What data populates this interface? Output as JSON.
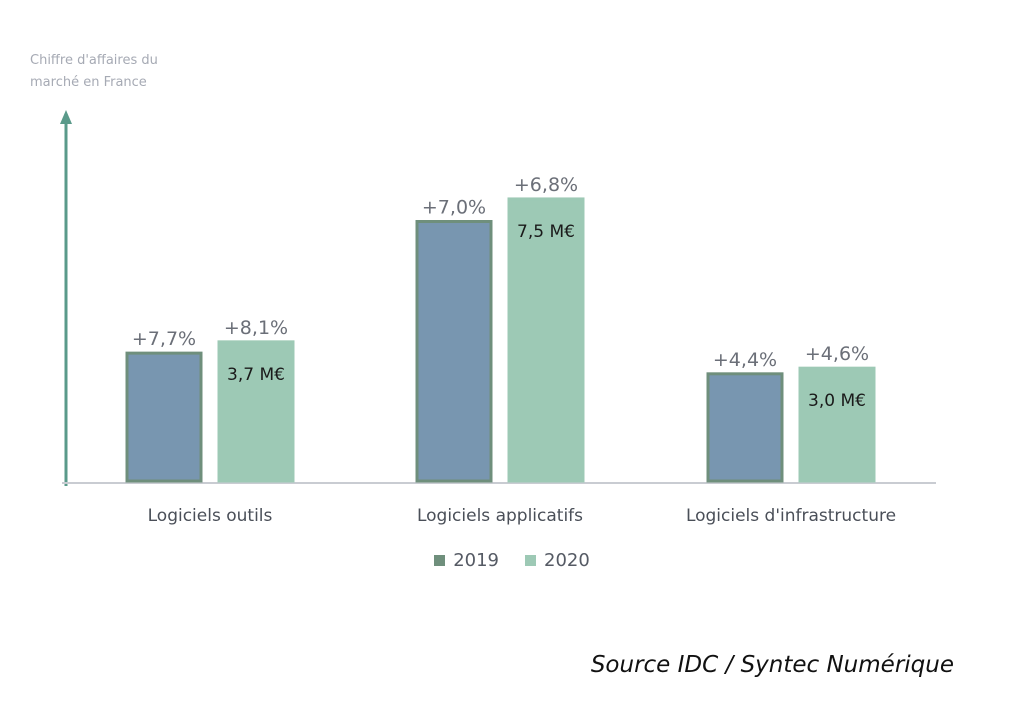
{
  "chart_data": {
    "type": "bar",
    "ylabel": "Chiffre d'affaires du marché en France",
    "categories": [
      "Logiciels outils",
      "Logiciels applicatifs",
      "Logiciels d'infrastructure"
    ],
    "ylim": [
      0,
      9.2
    ],
    "series": [
      {
        "name": "2019",
        "color": "#7896b0",
        "border": "#6f8f7c",
        "values": [
          3.4,
          6.9,
          2.85
        ],
        "growth_labels": [
          "+7,7%",
          "+7,0%",
          "+4,4%"
        ]
      },
      {
        "name": "2020",
        "color": "#9dc9b5",
        "border": "#9dc9b5",
        "values": [
          3.7,
          7.5,
          3.0
        ],
        "growth_labels": [
          "+8,1%",
          "+6,8%",
          "+4,6%"
        ],
        "value_labels": [
          "3,7 M€",
          "7,5 M€",
          "3,0 M€"
        ]
      }
    ],
    "legend": [
      {
        "label": "2019",
        "color": "#6f8f7c"
      },
      {
        "label": "2020",
        "color": "#9dc9b5"
      }
    ]
  },
  "source": "Source IDC / Syntec Numérique",
  "axis_color": "#5a9a8a"
}
